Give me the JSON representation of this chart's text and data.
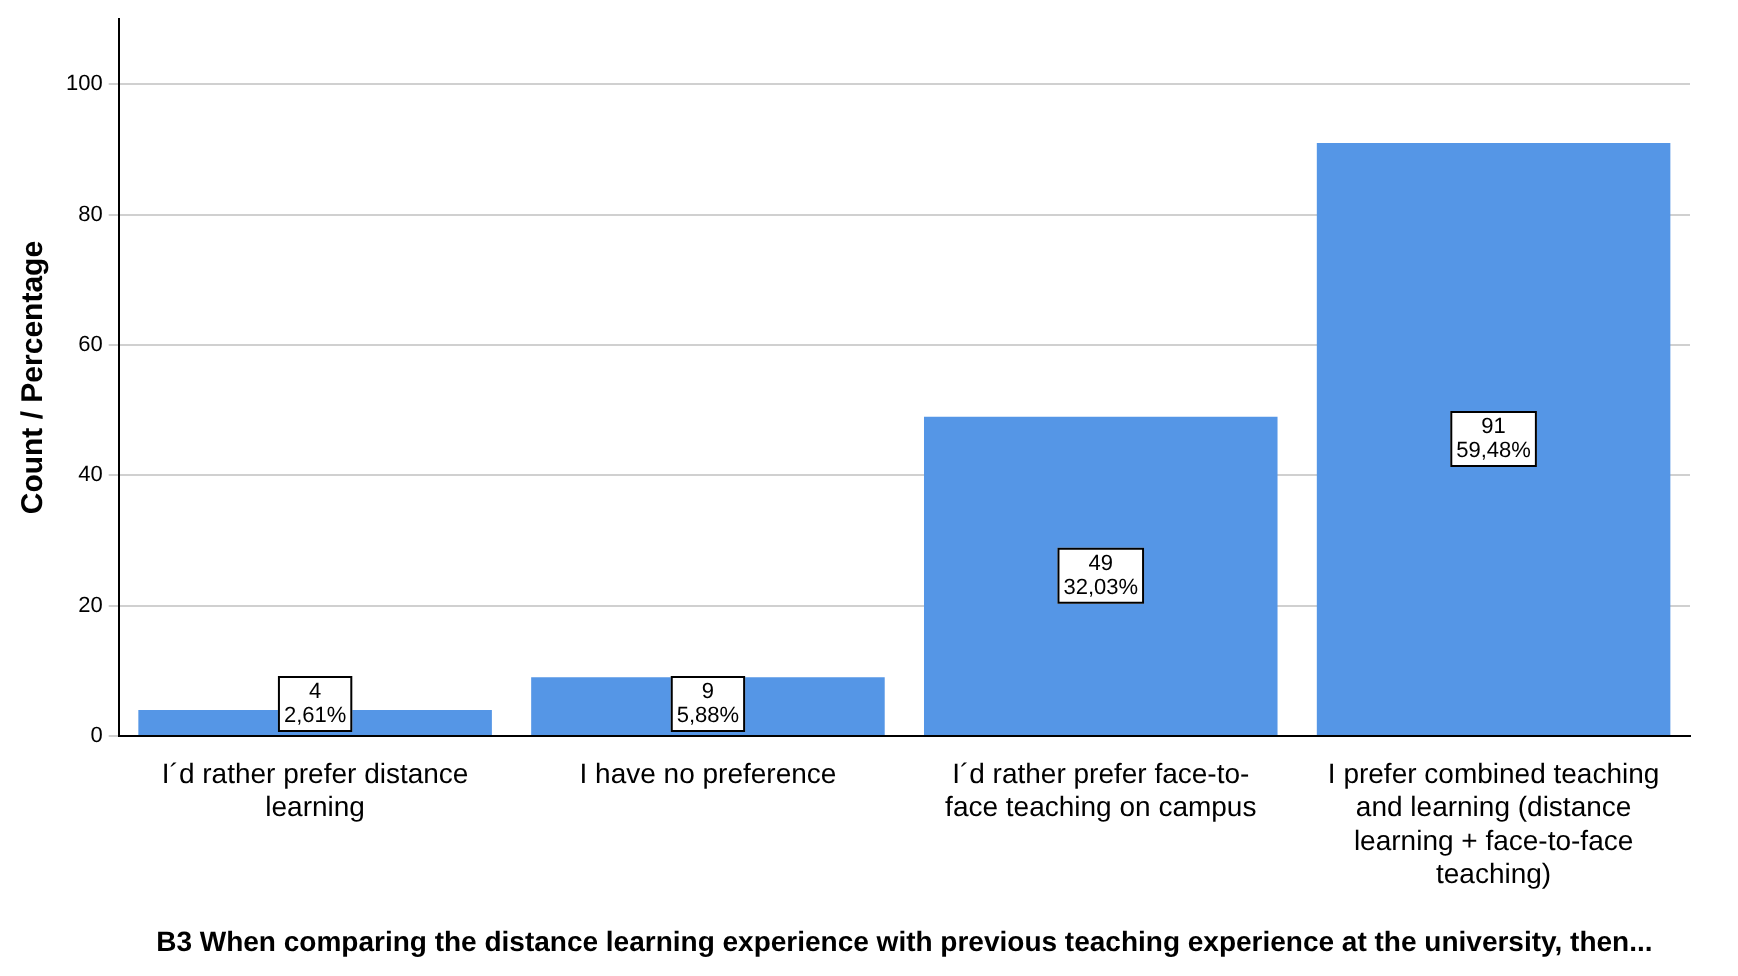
{
  "chart_data": {
    "type": "bar",
    "xlabel": "B3 When comparing the distance learning experience with previous teaching experience at the university, then...",
    "ylabel": "Count / Percentage",
    "categories": [
      "I´d rather prefer distance learning",
      "I have no preference",
      "I´d rather prefer face-to-face teaching on campus",
      "I prefer combined teaching and learning (distance learning + face-to-face teaching)"
    ],
    "values": [
      4,
      9,
      49,
      91
    ],
    "color": "#5596e6",
    "value_labels": [
      "4\n2,61%",
      "9\n5,88%",
      "49\n32,03%",
      "91\n59,48%"
    ],
    "ylim": [
      0,
      110
    ],
    "yticks": [
      0,
      20,
      40,
      60,
      80,
      100
    ],
    "grid": "y",
    "legend": false
  }
}
